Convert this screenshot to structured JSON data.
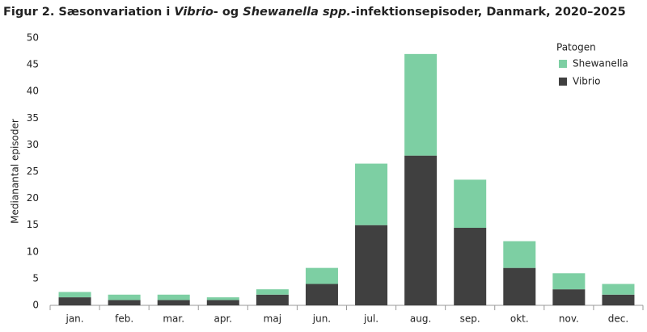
{
  "chart_data": {
    "type": "stacked_bar",
    "title": [
      {
        "text": "Figur 2. Sæsonvariation i ",
        "italic": false
      },
      {
        "text": "Vibrio",
        "italic": true
      },
      {
        "text": "- og ",
        "italic": false
      },
      {
        "text": "Shewanella spp.",
        "italic": true
      },
      {
        "text": "-infektionsepisoder,  Danmark, 2020–2025",
        "italic": false
      }
    ],
    "y_label": "Medianantal episoder",
    "legend_title": "Patogen",
    "legend_position": "upper right",
    "categories": [
      "jan.",
      "feb.",
      "mar.",
      "apr.",
      "maj",
      "jun.",
      "jul.",
      "aug.",
      "sep.",
      "okt.",
      "nov.",
      "dec."
    ],
    "series": [
      {
        "name": "Vibrio",
        "color": "#404040",
        "values": [
          1.5,
          1,
          1,
          1,
          2,
          4,
          15,
          28,
          14.5,
          7,
          3,
          2
        ]
      },
      {
        "name": "Shewanella",
        "color": "#7dcfa3",
        "values": [
          1,
          1,
          1,
          0.5,
          1,
          3,
          11.5,
          19,
          9,
          5,
          3,
          2
        ]
      }
    ],
    "ylim": [
      0,
      50
    ],
    "yticks": [
      0,
      5,
      10,
      15,
      20,
      25,
      30,
      35,
      40,
      45,
      50
    ],
    "grid": false
  }
}
